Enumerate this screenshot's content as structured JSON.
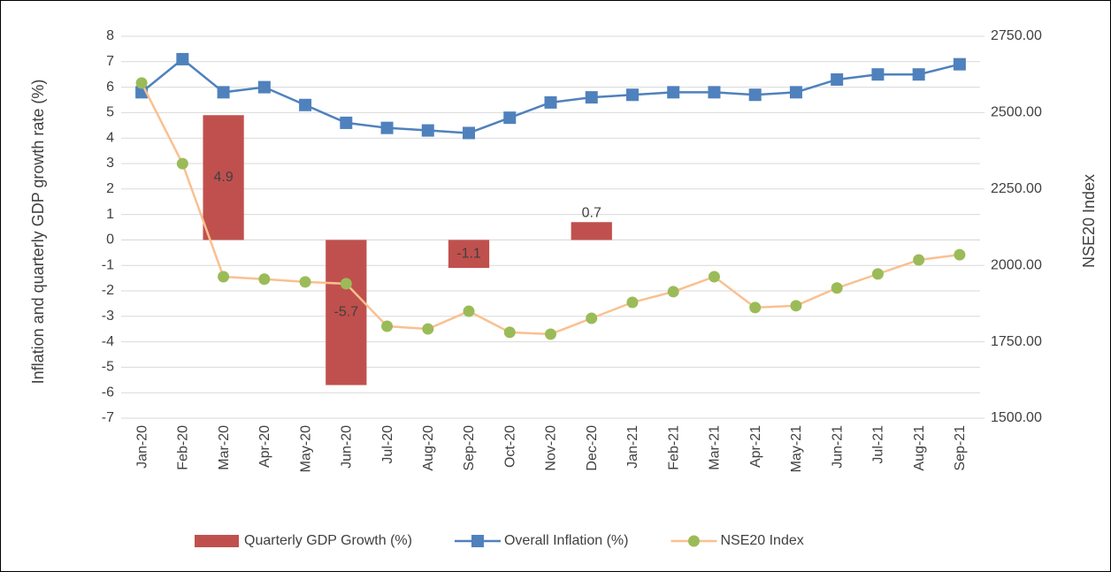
{
  "chart_data": {
    "type": "combo",
    "y_label": "Inflation and quarterly GDP growth rate (%)",
    "y2_label": "NSE20 Index",
    "categories": [
      "Jan-20",
      "Feb-20",
      "Mar-20",
      "Apr-20",
      "May-20",
      "Jun-20",
      "Jul-20",
      "Aug-20",
      "Sep-20",
      "Oct-20",
      "Nov-20",
      "Dec-20",
      "Jan-21",
      "Feb-21",
      "Mar-21",
      "Apr-21",
      "May-21",
      "Jun-21",
      "Jul-21",
      "Aug-21",
      "Sep-21"
    ],
    "series": [
      {
        "name": "Quarterly GDP Growth (%)",
        "kind": "bar",
        "color": "#c0504d",
        "values": [
          null,
          null,
          4.9,
          null,
          null,
          -5.7,
          null,
          null,
          -1.1,
          null,
          null,
          0.7,
          null,
          null,
          null,
          null,
          null,
          null,
          null,
          null,
          null
        ]
      },
      {
        "name": "Overall Inflation (%)",
        "kind": "line",
        "color": "#4f81bd",
        "marker": "square",
        "marker_color": "#4f81bd",
        "values": [
          5.8,
          7.1,
          5.8,
          6.0,
          5.3,
          4.6,
          4.4,
          4.3,
          4.2,
          4.8,
          5.4,
          5.6,
          5.7,
          5.8,
          5.8,
          5.7,
          5.8,
          6.3,
          6.5,
          6.5,
          6.9
        ]
      },
      {
        "name": "NSE20 Index",
        "kind": "line",
        "axis": "y2",
        "color": "#fac090",
        "marker": "circle",
        "marker_color": "#9bbb59",
        "values": [
          2597,
          2333,
          1963,
          1955,
          1946,
          1940,
          1801,
          1792,
          1850,
          1781,
          1775,
          1827,
          1879,
          1914,
          1963,
          1862,
          1868,
          1926,
          1972,
          2018,
          2035
        ]
      }
    ],
    "ylim": [
      -7,
      8
    ],
    "yticks": [
      -7,
      -6,
      -5,
      -4,
      -3,
      -2,
      -1,
      0,
      1,
      2,
      3,
      4,
      5,
      6,
      7,
      8
    ],
    "y2lim": [
      1500,
      2750
    ],
    "y2ticks": [
      {
        "value": 1500,
        "label": "1500.00"
      },
      {
        "value": 1750,
        "label": "1750.00"
      },
      {
        "value": 2000,
        "label": "2000.00"
      },
      {
        "value": 2250,
        "label": "2250.00"
      },
      {
        "value": 2500,
        "label": "2500.00"
      },
      {
        "value": 2750,
        "label": "2750.00"
      }
    ],
    "grid": true,
    "legend": "bottom"
  }
}
